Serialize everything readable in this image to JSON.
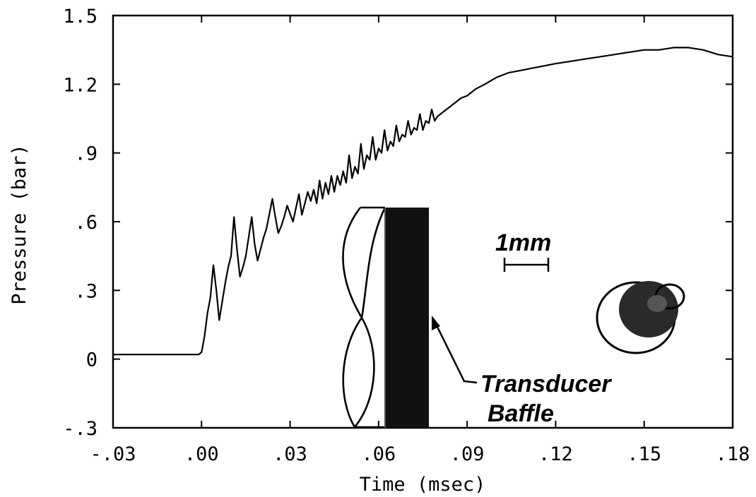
{
  "chart_data": {
    "type": "line",
    "title": "",
    "xlabel": "Time (msec)",
    "ylabel": "Pressure (bar)",
    "xlim": [
      -0.03,
      0.18
    ],
    "ylim": [
      -0.3,
      1.5
    ],
    "xticks": [
      -0.03,
      0.0,
      0.03,
      0.06,
      0.09,
      0.12,
      0.15,
      0.18
    ],
    "xtick_labels": [
      "-.03",
      ".00",
      ".03",
      ".06",
      ".09",
      ".12",
      ".15",
      ".18"
    ],
    "yticks": [
      -0.3,
      0.0,
      0.3,
      0.6,
      0.9,
      1.2,
      1.5
    ],
    "ytick_labels": [
      "-.3",
      "0",
      ".3",
      ".6",
      ".9",
      "1.2",
      "1.5"
    ],
    "grid": false,
    "series": [
      {
        "x": [
          -0.03,
          -0.02,
          -0.01,
          -0.001,
          0.0,
          0.001,
          0.002,
          0.003,
          0.004,
          0.005,
          0.006,
          0.007,
          0.008,
          0.009,
          0.01,
          0.011,
          0.012,
          0.013,
          0.014,
          0.015,
          0.017,
          0.018,
          0.019,
          0.02,
          0.021,
          0.022,
          0.024,
          0.025,
          0.026,
          0.027,
          0.028,
          0.029,
          0.031,
          0.032,
          0.033,
          0.034,
          0.035,
          0.036,
          0.037,
          0.038,
          0.039,
          0.04,
          0.041,
          0.042,
          0.043,
          0.044,
          0.045,
          0.046,
          0.047,
          0.048,
          0.049,
          0.05,
          0.051,
          0.052,
          0.053,
          0.054,
          0.055,
          0.056,
          0.057,
          0.058,
          0.059,
          0.06,
          0.061,
          0.062,
          0.063,
          0.064,
          0.065,
          0.066,
          0.067,
          0.068,
          0.069,
          0.07,
          0.071,
          0.072,
          0.073,
          0.074,
          0.075,
          0.076,
          0.077,
          0.078,
          0.079,
          0.08,
          0.082,
          0.084,
          0.086,
          0.088,
          0.09,
          0.093,
          0.096,
          0.1,
          0.104,
          0.108,
          0.112,
          0.116,
          0.12,
          0.125,
          0.13,
          0.135,
          0.14,
          0.145,
          0.15,
          0.155,
          0.16,
          0.165,
          0.17,
          0.175,
          0.18
        ],
        "y": [
          0.02,
          0.02,
          0.02,
          0.02,
          0.03,
          0.1,
          0.2,
          0.27,
          0.41,
          0.3,
          0.17,
          0.25,
          0.33,
          0.4,
          0.45,
          0.62,
          0.48,
          0.36,
          0.4,
          0.45,
          0.62,
          0.5,
          0.43,
          0.48,
          0.53,
          0.57,
          0.7,
          0.62,
          0.55,
          0.58,
          0.62,
          0.67,
          0.6,
          0.66,
          0.72,
          0.63,
          0.68,
          0.73,
          0.69,
          0.74,
          0.68,
          0.78,
          0.7,
          0.77,
          0.72,
          0.8,
          0.73,
          0.8,
          0.76,
          0.82,
          0.77,
          0.89,
          0.79,
          0.84,
          0.81,
          0.94,
          0.83,
          0.89,
          0.87,
          0.97,
          0.87,
          0.92,
          0.9,
          1.0,
          0.91,
          0.95,
          0.93,
          1.02,
          0.95,
          0.98,
          0.97,
          1.04,
          0.98,
          1.01,
          1.0,
          1.07,
          1.0,
          1.04,
          1.03,
          1.09,
          1.04,
          1.06,
          1.08,
          1.1,
          1.12,
          1.14,
          1.15,
          1.18,
          1.2,
          1.23,
          1.25,
          1.26,
          1.27,
          1.28,
          1.29,
          1.3,
          1.31,
          1.32,
          1.33,
          1.34,
          1.35,
          1.35,
          1.36,
          1.36,
          1.35,
          1.33,
          1.32
        ]
      }
    ],
    "annotations": {
      "scale_label": "1mm",
      "callout_line1": "Transducer",
      "callout_line2": "Baffle"
    }
  }
}
